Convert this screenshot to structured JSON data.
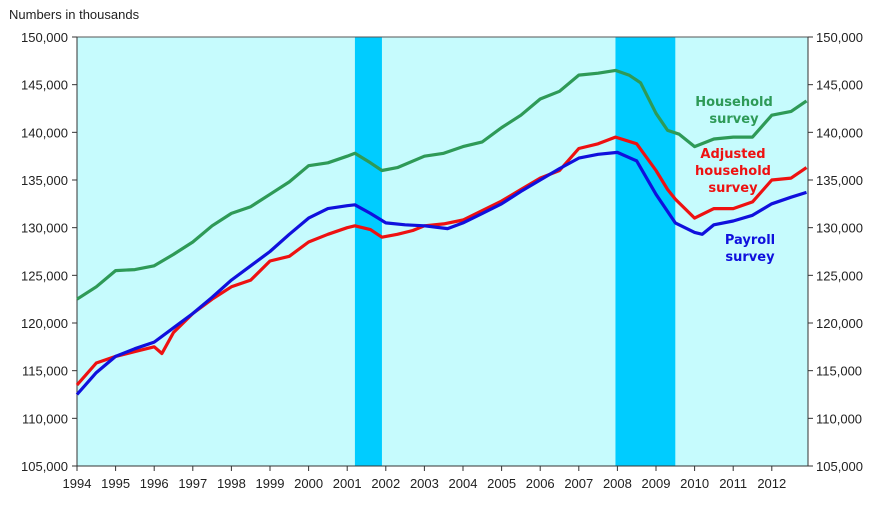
{
  "chart_data": {
    "type": "line",
    "title": "",
    "ylabel": "Numbers in thousands",
    "xlabel": "",
    "ylim": [
      105000,
      150000
    ],
    "xlim": [
      1994,
      2012.9
    ],
    "y_ticks": [
      "105,000",
      "110,000",
      "115,000",
      "120,000",
      "125,000",
      "130,000",
      "135,000",
      "140,000",
      "145,000",
      "150,000"
    ],
    "x_ticks": [
      "1994",
      "1995",
      "1996",
      "1997",
      "1998",
      "1999",
      "2000",
      "2001",
      "2002",
      "2003",
      "2004",
      "2005",
      "2006",
      "2007",
      "2008",
      "2009",
      "2010",
      "2011",
      "2012"
    ],
    "recessions": [
      [
        2001.2,
        2001.9
      ],
      [
        2007.95,
        2009.5
      ]
    ],
    "colors": {
      "background": "#c6fbfd",
      "recession": "#00ccff"
    },
    "series": [
      {
        "name": "Household survey",
        "label_lines": [
          "Household",
          "survey"
        ],
        "color": "#2e9a57",
        "x": [
          1994,
          1994.5,
          1995,
          1995.5,
          1996,
          1996.5,
          1997,
          1997.5,
          1998,
          1998.5,
          1999,
          1999.5,
          2000,
          2000.5,
          2001,
          2001.2,
          2001.6,
          2001.9,
          2002.3,
          2003,
          2003.5,
          2004,
          2004.5,
          2005,
          2005.5,
          2006,
          2006.5,
          2007,
          2007.5,
          2007.95,
          2008.3,
          2008.6,
          2009,
          2009.3,
          2009.6,
          2010,
          2010.5,
          2011,
          2011.5,
          2012,
          2012.5,
          2012.9
        ],
        "y": [
          122500,
          123800,
          125500,
          125600,
          126000,
          127200,
          128500,
          130200,
          131500,
          132200,
          133500,
          134800,
          136500,
          136800,
          137500,
          137800,
          136800,
          136000,
          136300,
          137500,
          137800,
          138500,
          139000,
          140500,
          141800,
          143500,
          144300,
          146000,
          146200,
          146500,
          146000,
          145200,
          142000,
          140200,
          139800,
          138500,
          139300,
          139500,
          139500,
          141800,
          142200,
          143300
        ]
      },
      {
        "name": "Adjusted household survey",
        "label_lines": [
          "Adjusted",
          "household",
          "survey"
        ],
        "color": "#ee1111",
        "x": [
          1994,
          1994.5,
          1995,
          1995.5,
          1996,
          1996.2,
          1996.5,
          1997,
          1997.5,
          1998,
          1998.5,
          1999,
          1999.5,
          2000,
          2000.5,
          2001,
          2001.2,
          2001.6,
          2001.9,
          2002.3,
          2002.7,
          2003,
          2003.5,
          2004,
          2004.5,
          2005,
          2005.5,
          2006,
          2006.5,
          2007,
          2007.5,
          2007.95,
          2008.5,
          2009,
          2009.3,
          2009.5,
          2010,
          2010.5,
          2011,
          2011.5,
          2012,
          2012.5,
          2012.9
        ],
        "y": [
          113500,
          115800,
          116500,
          117000,
          117500,
          116800,
          119000,
          121000,
          122500,
          123800,
          124500,
          126500,
          127000,
          128500,
          129300,
          130000,
          130200,
          129800,
          129000,
          129300,
          129700,
          130200,
          130400,
          130800,
          131800,
          132800,
          134000,
          135200,
          136000,
          138300,
          138800,
          139500,
          138800,
          136000,
          134000,
          133000,
          131000,
          132000,
          132000,
          132700,
          135000,
          135200,
          136300
        ]
      },
      {
        "name": "Payroll survey",
        "label_lines": [
          "Payroll",
          "survey"
        ],
        "color": "#1010dd",
        "x": [
          1994,
          1994.5,
          1995,
          1995.5,
          1996,
          1996.5,
          1997,
          1997.5,
          1998,
          1998.5,
          1999,
          1999.5,
          2000,
          2000.5,
          2001,
          2001.2,
          2001.6,
          2002,
          2002.5,
          2003,
          2003.6,
          2004,
          2004.5,
          2005,
          2005.5,
          2006,
          2006.5,
          2007,
          2007.5,
          2008,
          2008.5,
          2009,
          2009.5,
          2010,
          2010.2,
          2010.5,
          2011,
          2011.5,
          2012,
          2012.5,
          2012.9
        ],
        "y": [
          112500,
          114800,
          116500,
          117300,
          118000,
          119500,
          121000,
          122700,
          124500,
          126000,
          127500,
          129300,
          131000,
          132000,
          132300,
          132400,
          131500,
          130500,
          130300,
          130200,
          129900,
          130500,
          131500,
          132500,
          133800,
          135000,
          136200,
          137300,
          137700,
          137900,
          137000,
          133500,
          130500,
          129500,
          129300,
          130300,
          130700,
          131300,
          132500,
          133200,
          133700
        ]
      }
    ]
  }
}
